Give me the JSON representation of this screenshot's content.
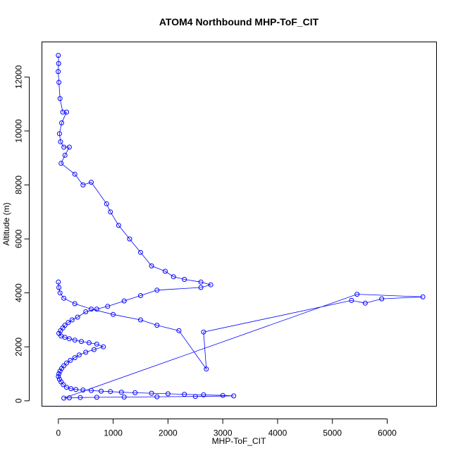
{
  "chart_data": {
    "type": "scatter",
    "title": "ATOM4 Northbound MHP-ToF_CIT",
    "xlabel": "MHP-ToF_CIT",
    "ylabel": "Altitude (m)",
    "xlim": [
      -300,
      6900
    ],
    "ylim": [
      -200,
      13300
    ],
    "x_ticks": [
      0,
      1000,
      2000,
      3000,
      4000,
      5000,
      6000
    ],
    "y_ticks": [
      0,
      2000,
      4000,
      6000,
      8000,
      10000,
      12000
    ],
    "grid": false,
    "legend": "none",
    "marker": "open-circle-connected",
    "color": "#0000ff",
    "series": [
      {
        "x": [
          0,
          5,
          -3,
          10,
          30,
          80,
          150,
          60,
          20,
          40,
          100,
          200,
          120,
          50,
          300,
          450,
          600,
          880,
          950,
          1100,
          1300,
          1500,
          1700,
          1950,
          2100,
          2300,
          2600,
          2780,
          2600,
          1800,
          1500,
          1200,
          900,
          700,
          500,
          350,
          250,
          180,
          120,
          80,
          40,
          10,
          50,
          120,
          200,
          300,
          420,
          560,
          700,
          820,
          650,
          500,
          380,
          300,
          220,
          150,
          100,
          60,
          30,
          10,
          0,
          20,
          50,
          90,
          150,
          230,
          320,
          450,
          600,
          780,
          950,
          1150,
          1400,
          1700,
          2000,
          2300,
          2650,
          3000,
          3200,
          2500,
          1800,
          1200,
          700,
          400,
          200,
          100,
          5450,
          6650,
          5900,
          5600,
          5350,
          2650,
          2700,
          2200,
          1800,
          1500,
          1000,
          600,
          300,
          100,
          30,
          10,
          0
        ],
        "y": [
          12800,
          12500,
          12200,
          11800,
          11200,
          10700,
          10700,
          10300,
          9900,
          9600,
          9400,
          9400,
          9100,
          8800,
          8400,
          8000,
          8100,
          7300,
          7000,
          6500,
          6000,
          5500,
          5000,
          4800,
          4600,
          4500,
          4400,
          4300,
          4200,
          4100,
          3900,
          3700,
          3500,
          3400,
          3300,
          3100,
          3000,
          2900,
          2800,
          2700,
          2600,
          2500,
          2400,
          2350,
          2300,
          2250,
          2200,
          2150,
          2100,
          2000,
          1900,
          1800,
          1700,
          1600,
          1500,
          1400,
          1300,
          1200,
          1100,
          1000,
          900,
          800,
          700,
          600,
          500,
          450,
          420,
          400,
          380,
          360,
          340,
          320,
          300,
          280,
          260,
          240,
          220,
          200,
          180,
          160,
          150,
          140,
          130,
          120,
          110,
          100,
          3950,
          3850,
          3780,
          3620,
          3720,
          2550,
          1180,
          2600,
          2800,
          3000,
          3200,
          3400,
          3600,
          3800,
          4000,
          4200,
          4400
        ]
      }
    ]
  }
}
